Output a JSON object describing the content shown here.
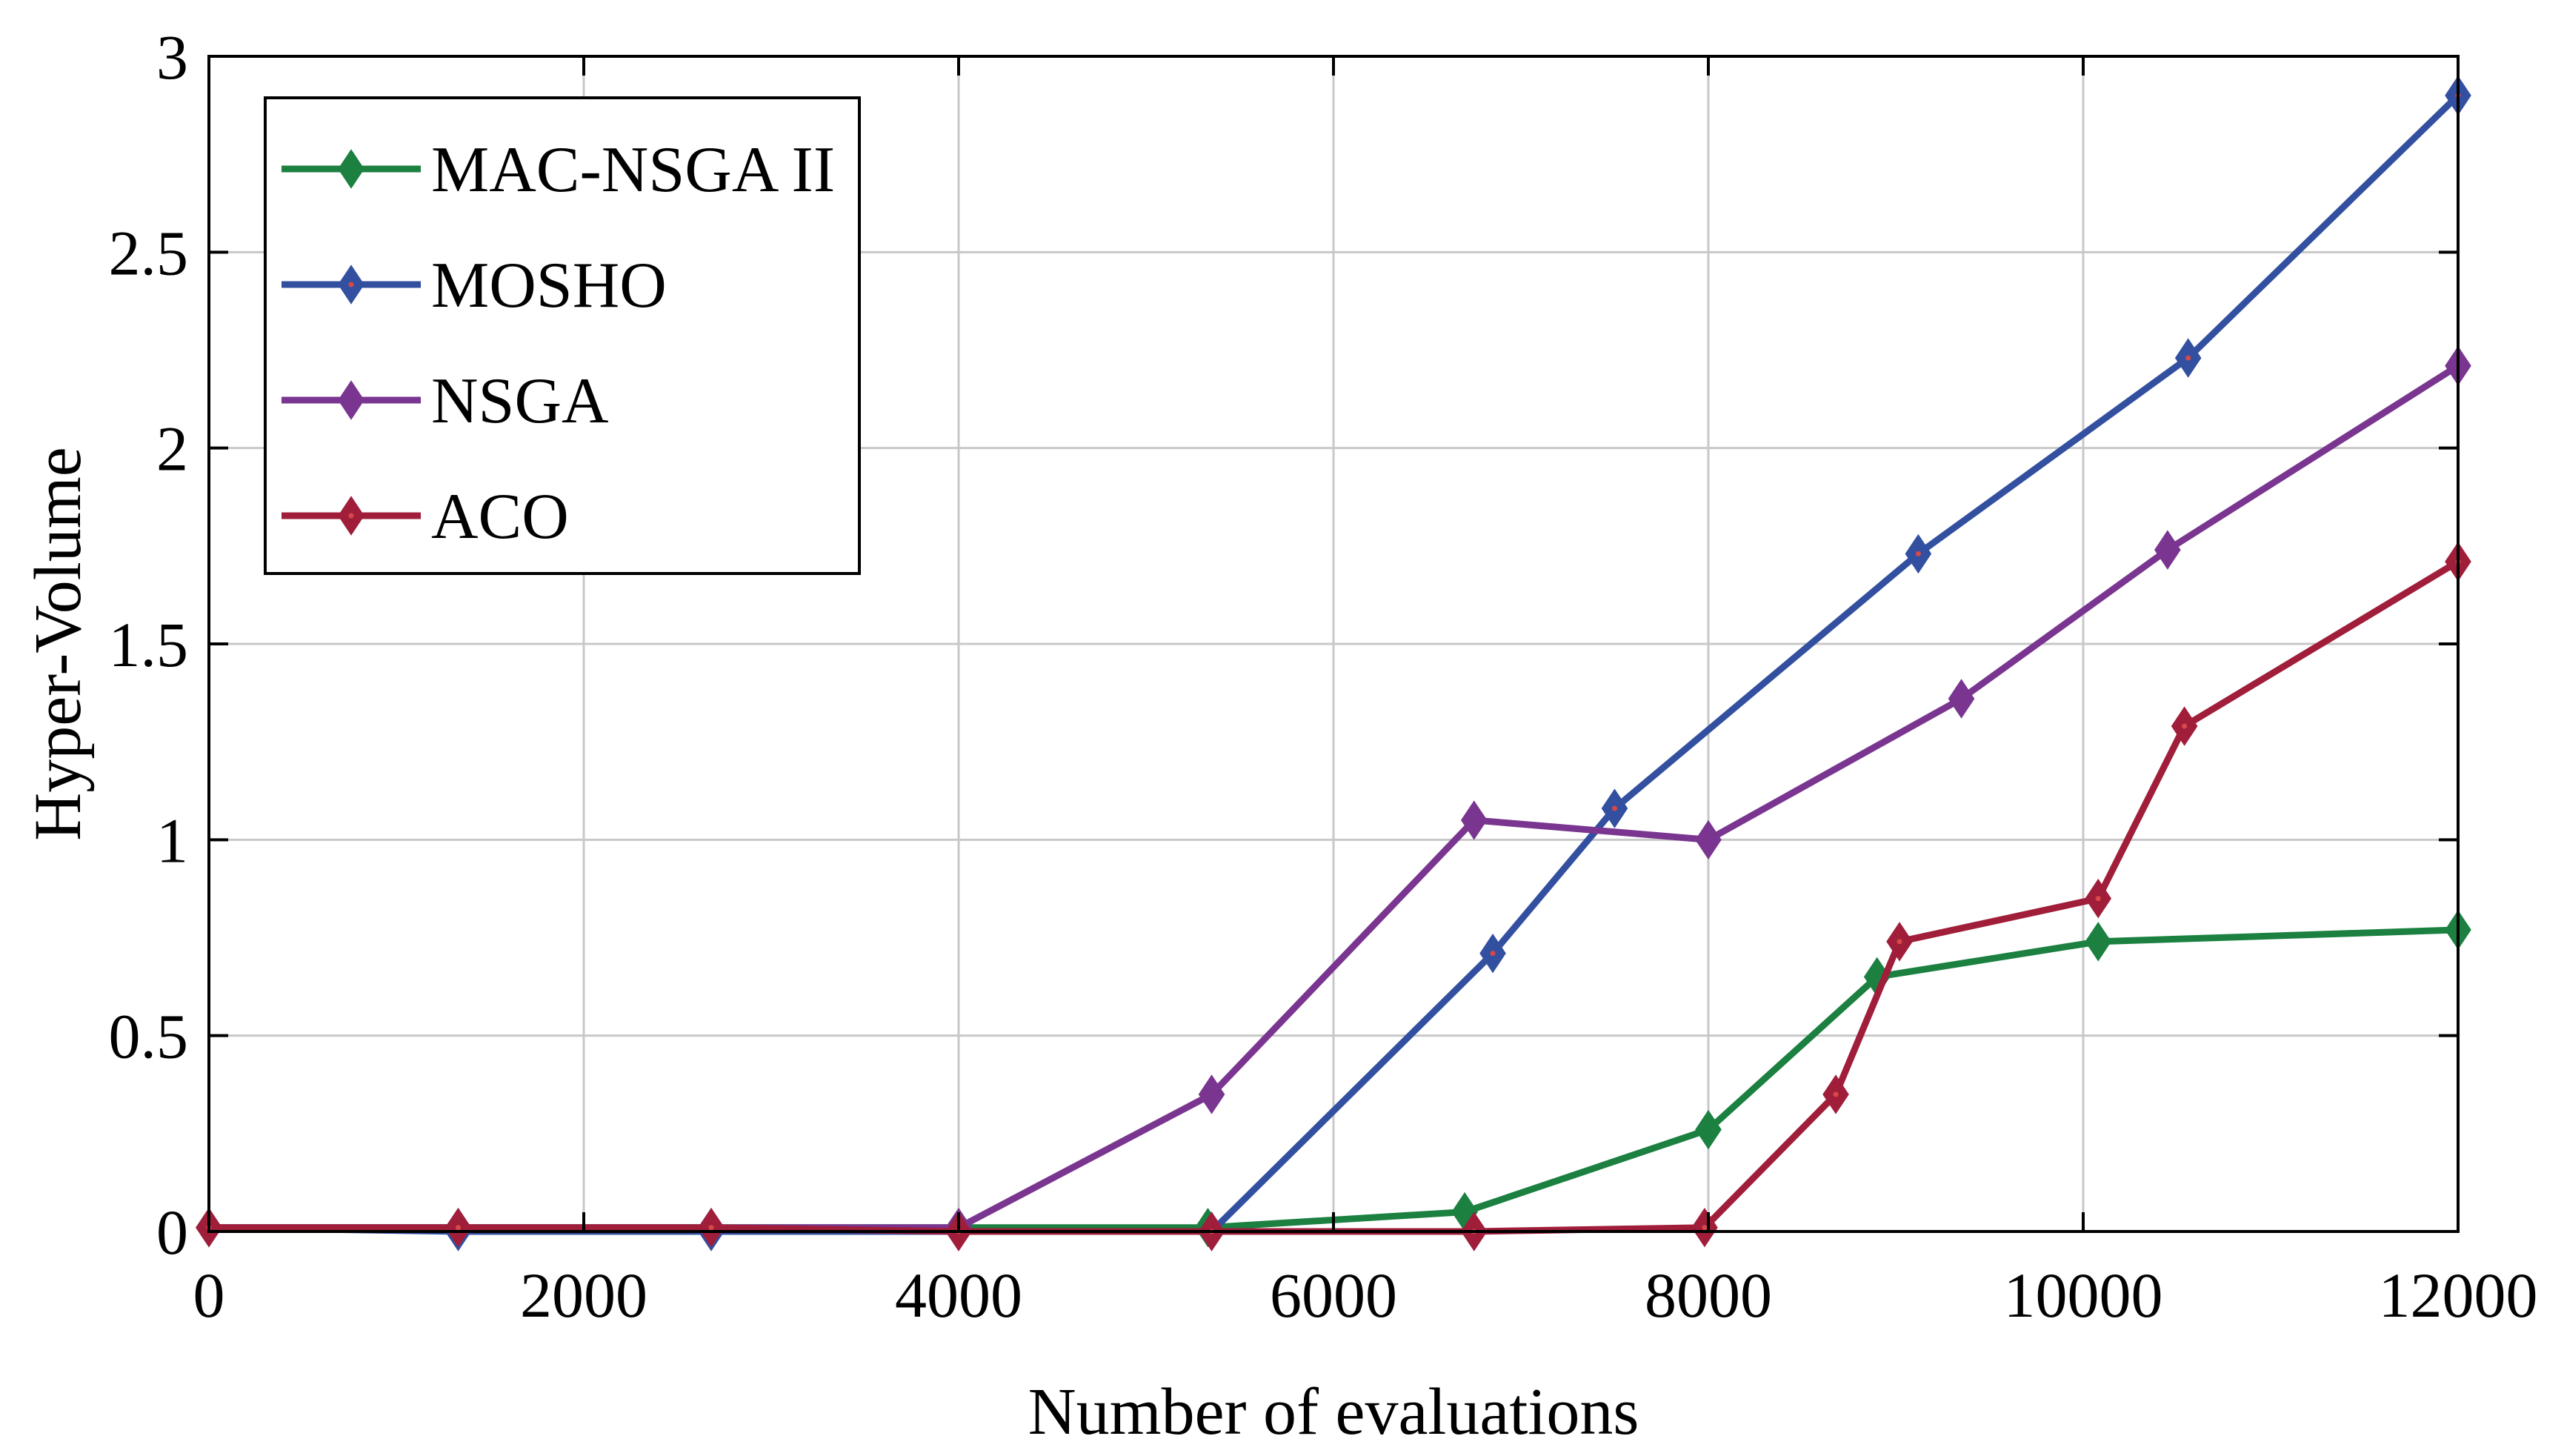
{
  "chart_data": {
    "type": "line",
    "title": "",
    "xlabel": "Number of evaluations",
    "ylabel": "Hyper-Volume",
    "xlim": [
      0,
      12000
    ],
    "ylim": [
      0,
      3
    ],
    "xticks": [
      0,
      2000,
      4000,
      6000,
      8000,
      10000,
      12000
    ],
    "xtick_labels": [
      "0",
      "2000",
      "4000",
      "6000",
      "8000",
      "10000",
      "12000"
    ],
    "yticks": [
      0,
      0.5,
      1,
      1.5,
      2,
      2.5,
      3
    ],
    "ytick_labels": [
      "0",
      "0.5",
      "1",
      "1.5",
      "2",
      "2.5",
      "3"
    ],
    "grid": true,
    "legend_position": "top-left",
    "marker": "diamond",
    "series": [
      {
        "name": "MAC-NSGA II",
        "color": "#1b8040",
        "marker_color": "#1b8040",
        "x": [
          0,
          1330,
          2680,
          4000,
          5330,
          6700,
          8000,
          8900,
          10080,
          12000
        ],
        "y": [
          0.01,
          0.01,
          0.01,
          0.01,
          0.01,
          0.05,
          0.26,
          0.65,
          0.74,
          0.77
        ]
      },
      {
        "name": "MOSHO",
        "color": "#3350a0",
        "marker_color": "#d84848",
        "x": [
          0,
          1330,
          2680,
          4000,
          5350,
          6850,
          7500,
          9120,
          10560,
          12000
        ],
        "y": [
          0.01,
          0.0,
          0.0,
          0.0,
          0.0,
          0.71,
          1.08,
          1.73,
          2.23,
          2.9
        ]
      },
      {
        "name": "NSGA",
        "color": "#7a3590",
        "marker_color": "#7a3590",
        "x": [
          0,
          1330,
          2680,
          4000,
          5350,
          6750,
          8000,
          9350,
          10450,
          12000
        ],
        "y": [
          0.01,
          0.01,
          0.01,
          0.01,
          0.35,
          1.05,
          1.0,
          1.36,
          1.74,
          2.21
        ]
      },
      {
        "name": "ACO",
        "color": "#a01e3a",
        "marker_color": "#d84848",
        "x": [
          0,
          1330,
          2680,
          4000,
          5350,
          6750,
          7980,
          8680,
          9020,
          10080,
          10540,
          12000
        ],
        "y": [
          0.01,
          0.01,
          0.01,
          0.0,
          0.0,
          0.0,
          0.01,
          0.35,
          0.74,
          0.85,
          1.29,
          1.71
        ]
      }
    ]
  }
}
